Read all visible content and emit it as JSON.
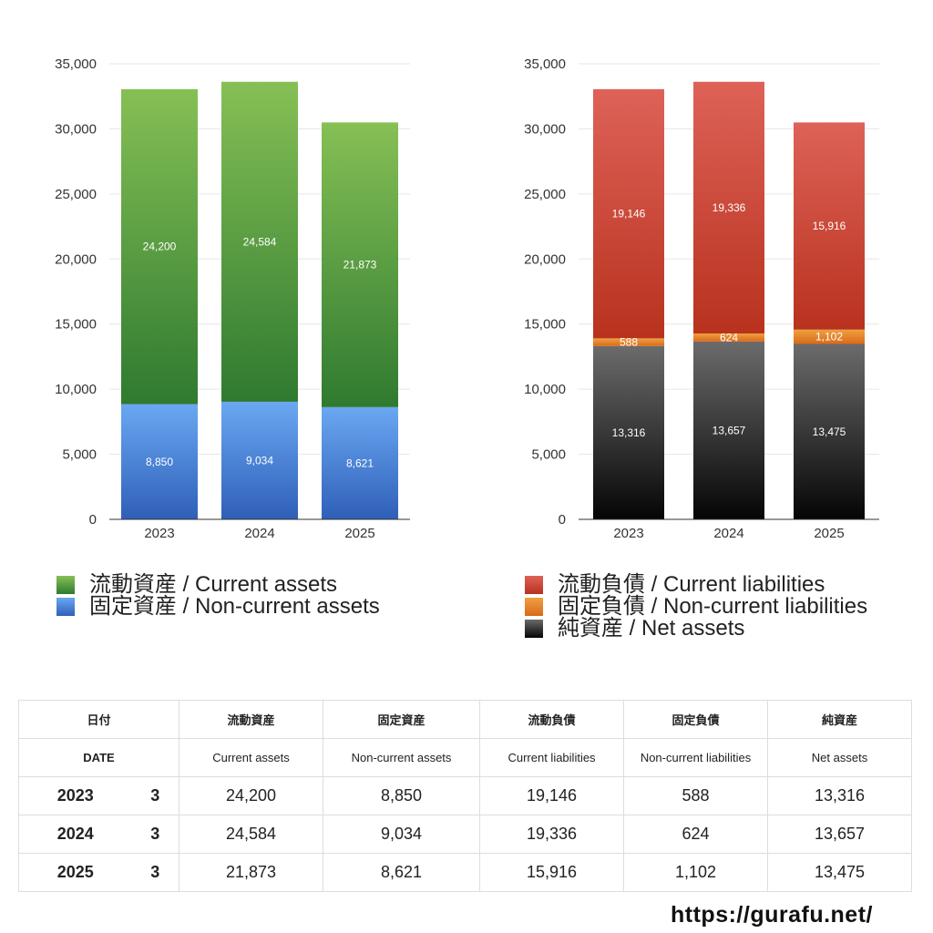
{
  "chart_data": [
    {
      "type": "bar",
      "stacked": true,
      "categories": [
        "2023",
        "2024",
        "2025"
      ],
      "ylim": [
        0,
        35000
      ],
      "yticks": [
        "0",
        "5,000",
        "10,000",
        "15,000",
        "20,000",
        "25,000",
        "30,000",
        "35,000"
      ],
      "grid": true,
      "legend_position": "bottom",
      "series": [
        {
          "name": "固定資産 / Non-current assets",
          "values": [
            8850,
            9034,
            8621
          ],
          "labels": [
            "8,850",
            "9,034",
            "8,621"
          ],
          "color_top": "#6aa8f2",
          "color_bottom": "#2f5fb8"
        },
        {
          "name": "流動資産 / Current assets",
          "values": [
            24200,
            24584,
            21873
          ],
          "labels": [
            "24,200",
            "24,584",
            "21,873"
          ],
          "color_top": "#86c055",
          "color_bottom": "#2f7a30"
        }
      ],
      "legend_order": [
        1,
        0
      ]
    },
    {
      "type": "bar",
      "stacked": true,
      "categories": [
        "2023",
        "2024",
        "2025"
      ],
      "ylim": [
        0,
        35000
      ],
      "yticks": [
        "0",
        "5,000",
        "10,000",
        "15,000",
        "20,000",
        "25,000",
        "30,000",
        "35,000"
      ],
      "grid": true,
      "legend_position": "bottom",
      "series": [
        {
          "name": "純資産 / Net assets",
          "values": [
            13316,
            13657,
            13475
          ],
          "labels": [
            "13,316",
            "13,657",
            "13,475"
          ],
          "color_top": "#6b6b6b",
          "color_bottom": "#050505"
        },
        {
          "name": "固定負債 / Non-current liabilities",
          "values": [
            588,
            624,
            1102
          ],
          "labels": [
            "588",
            "624",
            "1,102"
          ],
          "color_top": "#f0a040",
          "color_bottom": "#d86a1a"
        },
        {
          "name": "流動負債 / Current liabilities",
          "values": [
            19146,
            19336,
            15916
          ],
          "labels": [
            "19,146",
            "19,336",
            "15,916"
          ],
          "color_top": "#de6258",
          "color_bottom": "#b8321e"
        }
      ],
      "legend_order": [
        2,
        1,
        0
      ]
    }
  ],
  "table": {
    "header_jp": [
      "日付",
      "流動資産",
      "固定資産",
      "流動負債",
      "固定負債",
      "純資産"
    ],
    "header_en": [
      "DATE",
      "Current assets",
      "Non-current assets",
      "Current liabilities",
      "Non-current liabilities",
      "Net assets"
    ],
    "rows": [
      {
        "year": "2023",
        "month": "3",
        "values": [
          "24,200",
          "8,850",
          "19,146",
          "588",
          "13,316"
        ]
      },
      {
        "year": "2024",
        "month": "3",
        "values": [
          "24,584",
          "9,034",
          "19,336",
          "624",
          "13,657"
        ]
      },
      {
        "year": "2025",
        "month": "3",
        "values": [
          "21,873",
          "8,621",
          "15,916",
          "1,102",
          "13,475"
        ]
      }
    ]
  },
  "footer": {
    "url": "https://gurafu.net/"
  }
}
